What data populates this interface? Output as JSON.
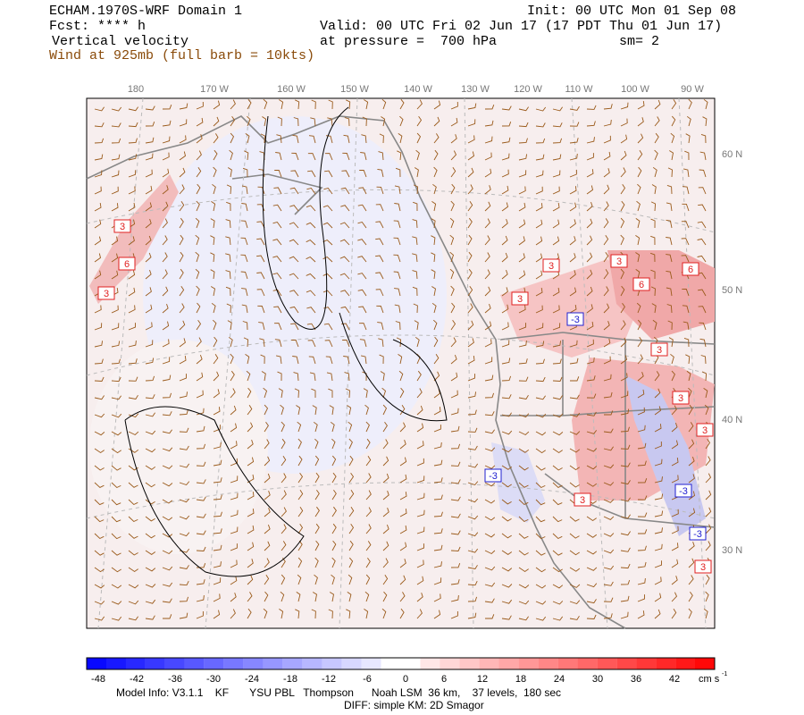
{
  "header": {
    "model": "ECHAM.1970S-WRF Domain 1",
    "init": "Init: 00 UTC Mon 01 Sep 08",
    "forecast": "Fcst: **** h",
    "valid": "Valid: 00 UTC Fri 02 Jun 17 (17 PDT Thu 01 Jun 17)",
    "field": "Vertical velocity",
    "pressure": "at pressure =  700 hPa",
    "smoothing": "sm= 2",
    "wind": "Wind at 925mb (full barb = 10kts)"
  },
  "map": {
    "longitude_labels": [
      "180",
      "170 W",
      "160 W",
      "150 W",
      "140 W",
      "130 W",
      "120 W",
      "110 W",
      "100 W",
      "90 W"
    ],
    "latitude_labels": [
      "60 N",
      "50 N",
      "40 N",
      "30 N"
    ],
    "contour_labels": [
      "3",
      "6",
      "3",
      "3",
      "3",
      "3",
      "6",
      "6",
      "-3",
      "3",
      "3",
      "3",
      "-3",
      "3",
      "-3",
      "-3",
      "3"
    ]
  },
  "colorbar": {
    "labels": [
      -48,
      -42,
      -36,
      -30,
      -24,
      -18,
      -12,
      -6,
      0,
      6,
      12,
      18,
      24,
      30,
      36,
      42
    ],
    "unit": "cm s",
    "unit_exponent": "-1"
  },
  "footer": {
    "model_info": "Model Info: V3.1.1    KF       YSU PBL   Thompson      Noah LSM  36 km,    37 levels,  180 sec",
    "diff": "DIFF: simple KM: 2D Smagor"
  }
}
